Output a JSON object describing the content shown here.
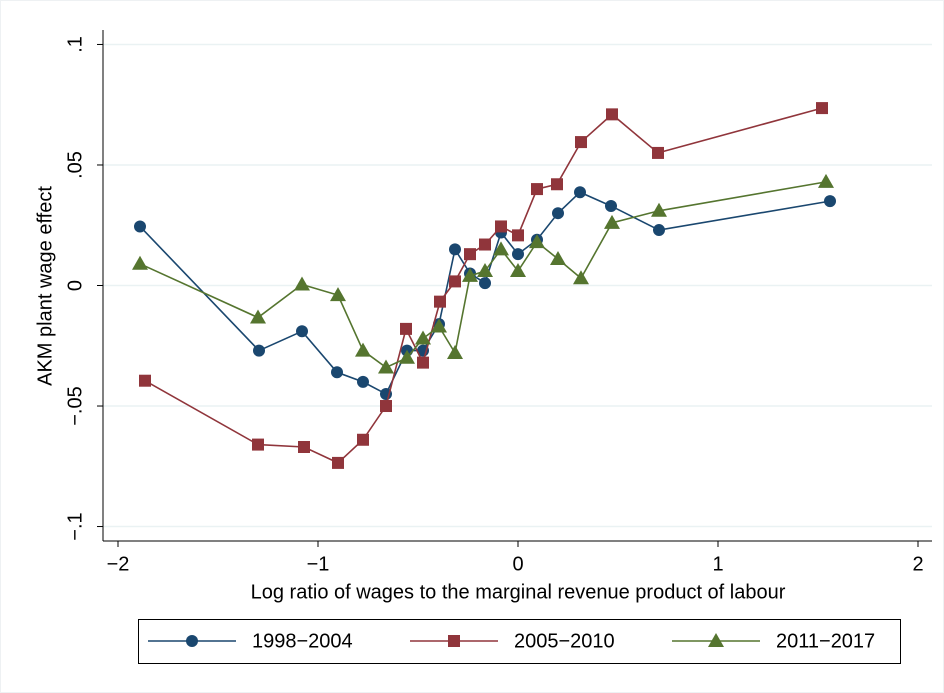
{
  "chart_data": {
    "type": "line",
    "x_label": "Log ratio of wages to the marginal revenue product of labour",
    "y_label": "AKM plant wage effect",
    "xlim": [
      -2.075,
      2.07
    ],
    "ylim": [
      -0.106,
      0.106
    ],
    "xticks": [
      {
        "value": -2,
        "label": "−2"
      },
      {
        "value": -1,
        "label": "−1"
      },
      0,
      1,
      2
    ],
    "yticks": [
      {
        "value": -0.1,
        "label": "−.1"
      },
      {
        "value": -0.05,
        "label": "−.05"
      },
      0,
      {
        "value": 0.05,
        "label": ".05"
      },
      {
        "value": 0.1,
        "label": ".1"
      }
    ],
    "grid": true,
    "legend_position": "bottom",
    "series": [
      {
        "name": "1998−2004",
        "color": "#1a476f",
        "marker": "circle",
        "x": [
          -1.89,
          -1.295,
          -1.08,
          -0.905,
          -0.775,
          -0.66,
          -0.555,
          -0.475,
          -0.395,
          -0.315,
          -0.24,
          -0.165,
          -0.085,
          0,
          0.095,
          0.2,
          0.31,
          0.465,
          0.705,
          1.56
        ],
        "values": [
          0.0245,
          -0.027,
          -0.019,
          -0.036,
          -0.04,
          -0.045,
          -0.027,
          -0.027,
          -0.016,
          0.015,
          0.005,
          0.001,
          0.022,
          0.013,
          0.019,
          0.03,
          0.0387,
          0.033,
          0.023,
          0.035
        ]
      },
      {
        "name": "2005−2010",
        "color": "#90353b",
        "marker": "square",
        "x": [
          -1.865,
          -1.3,
          -1.07,
          -0.9,
          -0.775,
          -0.66,
          -0.56,
          -0.475,
          -0.39,
          -0.315,
          -0.24,
          -0.165,
          -0.085,
          0,
          0.095,
          0.195,
          0.315,
          0.47,
          0.7,
          1.52
        ],
        "values": [
          -0.0395,
          -0.066,
          -0.067,
          -0.0736,
          -0.064,
          -0.05,
          -0.018,
          -0.032,
          -0.0067,
          0.0017,
          0.013,
          0.017,
          0.0245,
          0.0208,
          0.04,
          0.042,
          0.0595,
          0.071,
          0.055,
          0.0736
        ]
      },
      {
        "name": "2011−2017",
        "color": "#55752f",
        "marker": "triangle",
        "x": [
          -1.89,
          -1.3,
          -1.08,
          -0.9,
          -0.775,
          -0.66,
          -0.555,
          -0.475,
          -0.395,
          -0.315,
          -0.24,
          -0.165,
          -0.085,
          0,
          0.095,
          0.2,
          0.315,
          0.47,
          0.705,
          1.54
        ],
        "values": [
          0.009,
          -0.0133,
          0.0004,
          -0.004,
          -0.027,
          -0.034,
          -0.03,
          -0.022,
          -0.017,
          -0.028,
          0.004,
          0.006,
          0.015,
          0.006,
          0.018,
          0.011,
          0.003,
          0.026,
          0.031,
          0.043
        ]
      }
    ]
  }
}
